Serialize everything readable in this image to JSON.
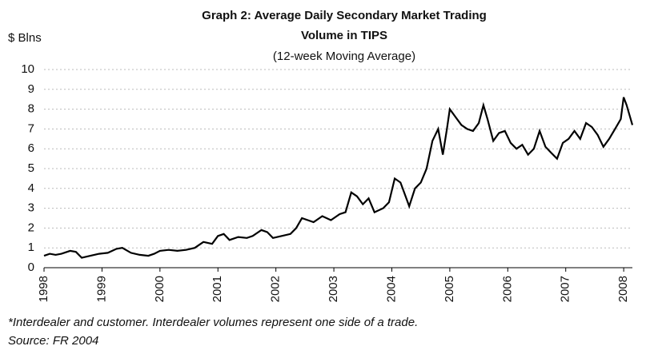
{
  "chart_data": {
    "type": "line",
    "title": "Graph 2: Average Daily Secondary Market Trading",
    "title_line2": "Volume in TIPS",
    "subtitle": "(12-week Moving Average)",
    "y_label": "$ Blns",
    "footnote": "*Interdealer and customer. Interdealer volumes represent one side of a trade.",
    "source": "Source: FR 2004",
    "xlim": [
      1998,
      2008.15
    ],
    "xticks": [
      1998,
      1999,
      2000,
      2001,
      2002,
      2003,
      2004,
      2005,
      2006,
      2007,
      2008
    ],
    "ylim": [
      0,
      10
    ],
    "yticks": [
      0,
      1,
      2,
      3,
      4,
      5,
      6,
      7,
      8,
      9,
      10
    ],
    "grid": true,
    "series": [
      {
        "color": "#000000",
        "x": [
          1998.0,
          1998.1,
          1998.2,
          1998.3,
          1998.45,
          1998.55,
          1998.65,
          1998.8,
          1998.95,
          1999.1,
          1999.25,
          1999.35,
          1999.5,
          1999.65,
          1999.8,
          1999.9,
          2000.0,
          2000.15,
          2000.3,
          2000.45,
          2000.6,
          2000.75,
          2000.9,
          2001.0,
          2001.1,
          2001.2,
          2001.35,
          2001.5,
          2001.6,
          2001.75,
          2001.85,
          2001.95,
          2002.1,
          2002.25,
          2002.35,
          2002.45,
          2002.55,
          2002.65,
          2002.8,
          2002.95,
          2003.1,
          2003.2,
          2003.3,
          2003.4,
          2003.5,
          2003.6,
          2003.7,
          2003.85,
          2003.95,
          2004.05,
          2004.15,
          2004.25,
          2004.3,
          2004.4,
          2004.5,
          2004.6,
          2004.7,
          2004.8,
          2004.88,
          2004.95,
          2005.0,
          2005.1,
          2005.2,
          2005.3,
          2005.4,
          2005.5,
          2005.58,
          2005.65,
          2005.75,
          2005.85,
          2005.95,
          2006.05,
          2006.15,
          2006.25,
          2006.35,
          2006.45,
          2006.55,
          2006.65,
          2006.75,
          2006.85,
          2006.95,
          2007.05,
          2007.15,
          2007.25,
          2007.35,
          2007.45,
          2007.55,
          2007.65,
          2007.75,
          2007.85,
          2007.95,
          2008.0,
          2008.05,
          2008.1,
          2008.15
        ],
        "values": [
          0.6,
          0.7,
          0.65,
          0.7,
          0.85,
          0.8,
          0.5,
          0.6,
          0.7,
          0.75,
          0.95,
          1.0,
          0.75,
          0.65,
          0.6,
          0.7,
          0.85,
          0.9,
          0.85,
          0.9,
          1.0,
          1.3,
          1.2,
          1.6,
          1.7,
          1.4,
          1.55,
          1.5,
          1.6,
          1.9,
          1.8,
          1.5,
          1.6,
          1.7,
          2.0,
          2.5,
          2.4,
          2.3,
          2.6,
          2.4,
          2.7,
          2.8,
          3.8,
          3.6,
          3.2,
          3.5,
          2.8,
          3.0,
          3.3,
          4.5,
          4.3,
          3.5,
          3.1,
          4.0,
          4.3,
          5.0,
          6.4,
          7.0,
          5.7,
          7.0,
          8.0,
          7.6,
          7.2,
          7.0,
          6.9,
          7.3,
          8.2,
          7.5,
          6.4,
          6.8,
          6.9,
          6.3,
          6.0,
          6.2,
          5.7,
          6.0,
          6.9,
          6.1,
          5.8,
          5.5,
          6.3,
          6.5,
          6.9,
          6.5,
          7.3,
          7.1,
          6.7,
          6.1,
          6.5,
          7.0,
          7.5,
          8.6,
          8.2,
          7.7,
          7.2
        ]
      }
    ]
  }
}
